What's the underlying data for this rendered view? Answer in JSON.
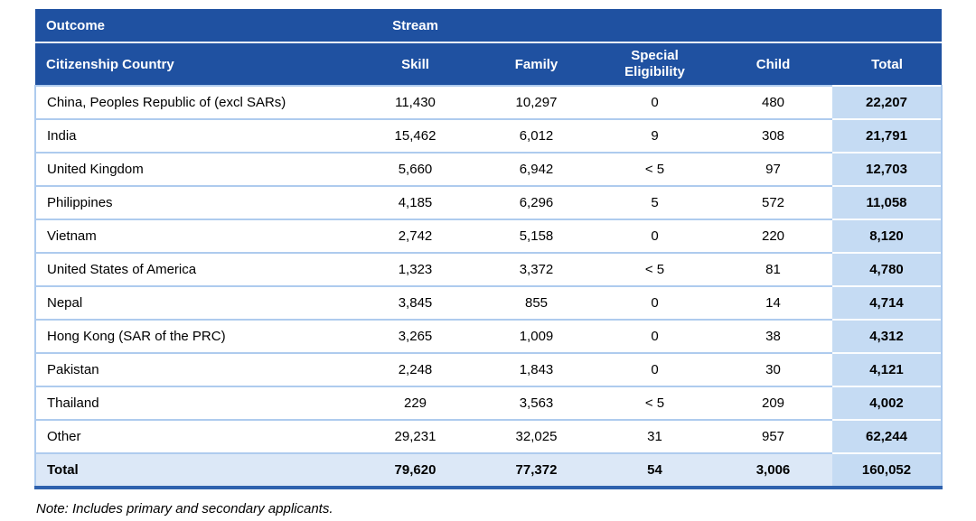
{
  "colors": {
    "header_bg": "#1F51A1",
    "header_text": "#FFFFFF",
    "total_column_bg": "#C5DBF3",
    "total_row_bg": "#DCE8F7",
    "row_separator": "#AECBEE",
    "bottom_border": "#2F62AE",
    "body_text": "#000000"
  },
  "table": {
    "dimension_labels": {
      "outcome": "Outcome",
      "stream": "Stream"
    },
    "columns": [
      "Citizenship Country",
      "Skill",
      "Family",
      "Special Eligibility",
      "Child",
      "Total"
    ],
    "rows": [
      {
        "country": "China, Peoples Republic of (excl SARs)",
        "skill": "11,430",
        "family": "10,297",
        "special": "0",
        "child": "480",
        "total": "22,207"
      },
      {
        "country": "India",
        "skill": "15,462",
        "family": "6,012",
        "special": "9",
        "child": "308",
        "total": "21,791"
      },
      {
        "country": "United Kingdom",
        "skill": "5,660",
        "family": "6,942",
        "special": "< 5",
        "child": "97",
        "total": "12,703"
      },
      {
        "country": "Philippines",
        "skill": "4,185",
        "family": "6,296",
        "special": "5",
        "child": "572",
        "total": "11,058"
      },
      {
        "country": "Vietnam",
        "skill": "2,742",
        "family": "5,158",
        "special": "0",
        "child": "220",
        "total": "8,120"
      },
      {
        "country": "United States of America",
        "skill": "1,323",
        "family": "3,372",
        "special": "< 5",
        "child": "81",
        "total": "4,780"
      },
      {
        "country": "Nepal",
        "skill": "3,845",
        "family": "855",
        "special": "0",
        "child": "14",
        "total": "4,714"
      },
      {
        "country": "Hong Kong (SAR of the PRC)",
        "skill": "3,265",
        "family": "1,009",
        "special": "0",
        "child": "38",
        "total": "4,312"
      },
      {
        "country": "Pakistan",
        "skill": "2,248",
        "family": "1,843",
        "special": "0",
        "child": "30",
        "total": "4,121"
      },
      {
        "country": "Thailand",
        "skill": "229",
        "family": "3,563",
        "special": "< 5",
        "child": "209",
        "total": "4,002"
      },
      {
        "country": "Other",
        "skill": "29,231",
        "family": "32,025",
        "special": "31",
        "child": "957",
        "total": "62,244"
      }
    ],
    "total_row": {
      "country": "Total",
      "skill": "79,620",
      "family": "77,372",
      "special": "54",
      "child": "3,006",
      "total": "160,052"
    }
  },
  "note": "Note: Includes primary and secondary applicants."
}
